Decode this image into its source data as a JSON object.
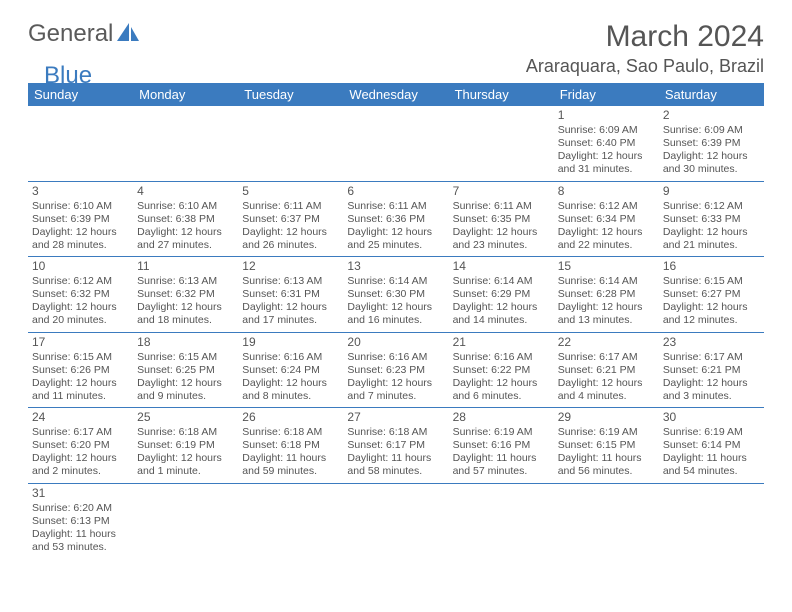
{
  "logo": {
    "text1": "General",
    "text2": "Blue",
    "sail_color": "#3b7bbf"
  },
  "header": {
    "month": "March 2024",
    "location": "Araraquara, Sao Paulo, Brazil"
  },
  "colors": {
    "header_bg": "#3b7bbf",
    "header_fg": "#ffffff",
    "rule": "#3b7bbf",
    "text": "#555555"
  },
  "weekdays": [
    "Sunday",
    "Monday",
    "Tuesday",
    "Wednesday",
    "Thursday",
    "Friday",
    "Saturday"
  ],
  "weeks": [
    [
      null,
      null,
      null,
      null,
      null,
      {
        "n": "1",
        "sr": "6:09 AM",
        "ss": "6:40 PM",
        "dl": "12 hours and 31 minutes."
      },
      {
        "n": "2",
        "sr": "6:09 AM",
        "ss": "6:39 PM",
        "dl": "12 hours and 30 minutes."
      }
    ],
    [
      {
        "n": "3",
        "sr": "6:10 AM",
        "ss": "6:39 PM",
        "dl": "12 hours and 28 minutes."
      },
      {
        "n": "4",
        "sr": "6:10 AM",
        "ss": "6:38 PM",
        "dl": "12 hours and 27 minutes."
      },
      {
        "n": "5",
        "sr": "6:11 AM",
        "ss": "6:37 PM",
        "dl": "12 hours and 26 minutes."
      },
      {
        "n": "6",
        "sr": "6:11 AM",
        "ss": "6:36 PM",
        "dl": "12 hours and 25 minutes."
      },
      {
        "n": "7",
        "sr": "6:11 AM",
        "ss": "6:35 PM",
        "dl": "12 hours and 23 minutes."
      },
      {
        "n": "8",
        "sr": "6:12 AM",
        "ss": "6:34 PM",
        "dl": "12 hours and 22 minutes."
      },
      {
        "n": "9",
        "sr": "6:12 AM",
        "ss": "6:33 PM",
        "dl": "12 hours and 21 minutes."
      }
    ],
    [
      {
        "n": "10",
        "sr": "6:12 AM",
        "ss": "6:32 PM",
        "dl": "12 hours and 20 minutes."
      },
      {
        "n": "11",
        "sr": "6:13 AM",
        "ss": "6:32 PM",
        "dl": "12 hours and 18 minutes."
      },
      {
        "n": "12",
        "sr": "6:13 AM",
        "ss": "6:31 PM",
        "dl": "12 hours and 17 minutes."
      },
      {
        "n": "13",
        "sr": "6:14 AM",
        "ss": "6:30 PM",
        "dl": "12 hours and 16 minutes."
      },
      {
        "n": "14",
        "sr": "6:14 AM",
        "ss": "6:29 PM",
        "dl": "12 hours and 14 minutes."
      },
      {
        "n": "15",
        "sr": "6:14 AM",
        "ss": "6:28 PM",
        "dl": "12 hours and 13 minutes."
      },
      {
        "n": "16",
        "sr": "6:15 AM",
        "ss": "6:27 PM",
        "dl": "12 hours and 12 minutes."
      }
    ],
    [
      {
        "n": "17",
        "sr": "6:15 AM",
        "ss": "6:26 PM",
        "dl": "12 hours and 11 minutes."
      },
      {
        "n": "18",
        "sr": "6:15 AM",
        "ss": "6:25 PM",
        "dl": "12 hours and 9 minutes."
      },
      {
        "n": "19",
        "sr": "6:16 AM",
        "ss": "6:24 PM",
        "dl": "12 hours and 8 minutes."
      },
      {
        "n": "20",
        "sr": "6:16 AM",
        "ss": "6:23 PM",
        "dl": "12 hours and 7 minutes."
      },
      {
        "n": "21",
        "sr": "6:16 AM",
        "ss": "6:22 PM",
        "dl": "12 hours and 6 minutes."
      },
      {
        "n": "22",
        "sr": "6:17 AM",
        "ss": "6:21 PM",
        "dl": "12 hours and 4 minutes."
      },
      {
        "n": "23",
        "sr": "6:17 AM",
        "ss": "6:21 PM",
        "dl": "12 hours and 3 minutes."
      }
    ],
    [
      {
        "n": "24",
        "sr": "6:17 AM",
        "ss": "6:20 PM",
        "dl": "12 hours and 2 minutes."
      },
      {
        "n": "25",
        "sr": "6:18 AM",
        "ss": "6:19 PM",
        "dl": "12 hours and 1 minute."
      },
      {
        "n": "26",
        "sr": "6:18 AM",
        "ss": "6:18 PM",
        "dl": "11 hours and 59 minutes."
      },
      {
        "n": "27",
        "sr": "6:18 AM",
        "ss": "6:17 PM",
        "dl": "11 hours and 58 minutes."
      },
      {
        "n": "28",
        "sr": "6:19 AM",
        "ss": "6:16 PM",
        "dl": "11 hours and 57 minutes."
      },
      {
        "n": "29",
        "sr": "6:19 AM",
        "ss": "6:15 PM",
        "dl": "11 hours and 56 minutes."
      },
      {
        "n": "30",
        "sr": "6:19 AM",
        "ss": "6:14 PM",
        "dl": "11 hours and 54 minutes."
      }
    ],
    [
      {
        "n": "31",
        "sr": "6:20 AM",
        "ss": "6:13 PM",
        "dl": "11 hours and 53 minutes."
      },
      null,
      null,
      null,
      null,
      null,
      null
    ]
  ],
  "labels": {
    "sunrise": "Sunrise: ",
    "sunset": "Sunset: ",
    "daylight": "Daylight: "
  }
}
